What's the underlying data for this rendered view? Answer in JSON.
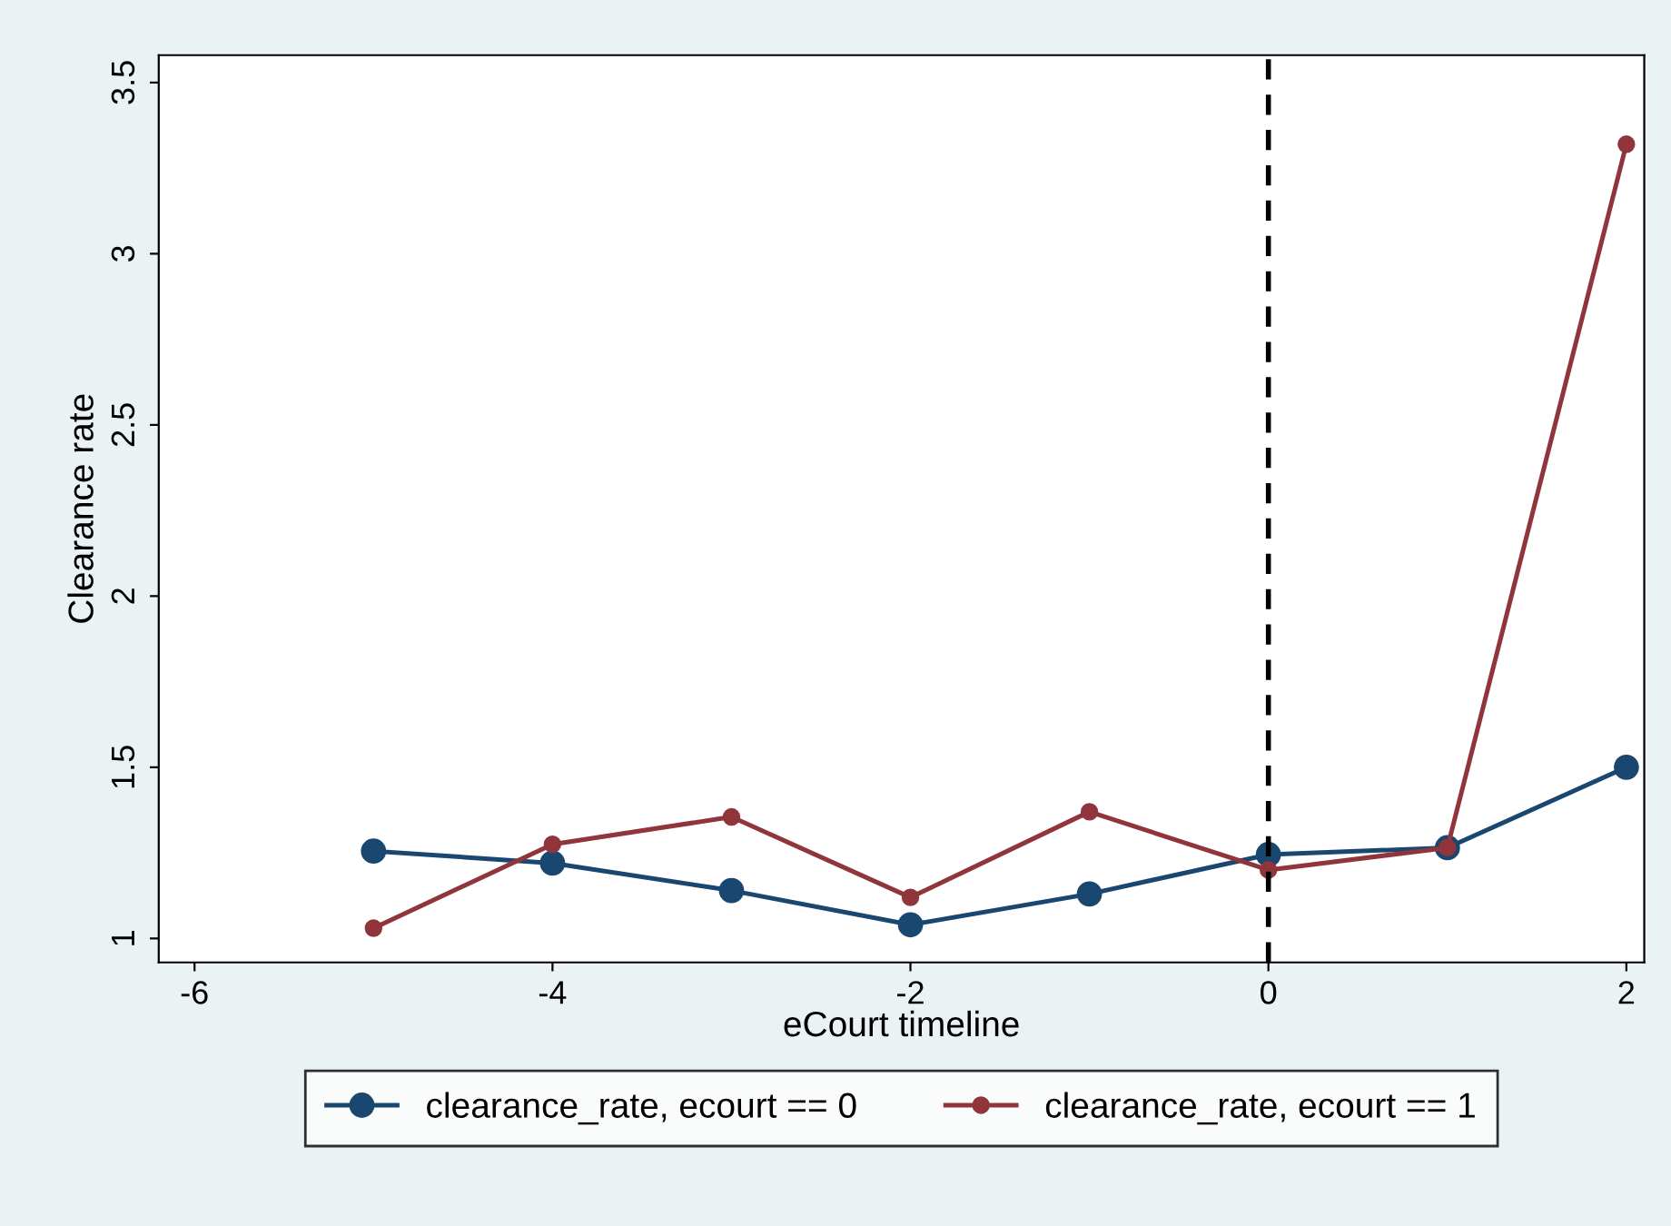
{
  "chart_data": {
    "type": "line",
    "xlabel": "eCourt timeline",
    "ylabel": "Clearance rate",
    "x": [
      -5,
      -4,
      -3,
      -2,
      -1,
      0,
      1,
      2
    ],
    "series": [
      {
        "name": "clearance_rate, ecourt == 0",
        "color": "#1a476f",
        "values": [
          1.255,
          1.22,
          1.14,
          1.04,
          1.13,
          1.245,
          1.265,
          1.5
        ]
      },
      {
        "name": "clearance_rate, ecourt == 1",
        "color": "#90353b",
        "values": [
          1.03,
          1.275,
          1.355,
          1.12,
          1.37,
          1.2,
          1.265,
          3.32
        ]
      }
    ],
    "xlim": [
      -6.2,
      2.1
    ],
    "xticks": [
      -6,
      -4,
      -2,
      0,
      2
    ],
    "ylim": [
      0.93,
      3.58
    ],
    "yticks": [
      1,
      1.5,
      2,
      2.5,
      3,
      3.5
    ],
    "ref_lines": [
      {
        "axis": "x",
        "value": 0,
        "color": "#000000",
        "line_style": "dashed"
      }
    ],
    "grid": false,
    "legend": "bottom",
    "marker": "circle",
    "line_style": "solid"
  }
}
